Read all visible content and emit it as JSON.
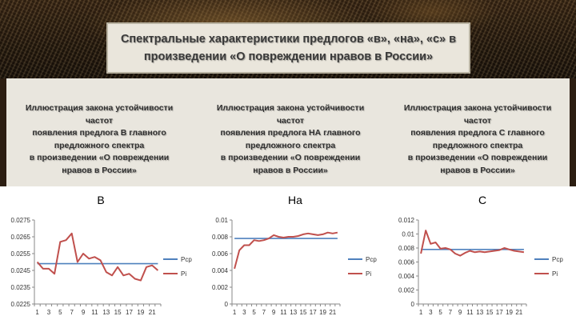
{
  "title": "Спектральные характеристики предлогов «в», «на», «с» в произведении «О повреждении нравов в России»",
  "captions": [
    {
      "lines": [
        "Иллюстрация закона устойчивости частот",
        "появления предлога В главного",
        "предложного спектра",
        "в произведении «О повреждении",
        "нравов в России»"
      ]
    },
    {
      "lines": [
        "Иллюстрация закона устойчивости частот",
        "появления предлога НА главного",
        "предложного спектра",
        "в произведении «О повреждении",
        "нравов в России»"
      ]
    },
    {
      "lines": [
        "Иллюстрация закона устойчивости частот",
        "появления предлога С главного",
        "предложного спектра",
        "в произведении «О повреждении",
        "нравов в России»"
      ]
    }
  ],
  "colors": {
    "pcp": "#4f81bd",
    "pi": "#c0504d"
  },
  "chart_data": [
    {
      "type": "line",
      "title": "В",
      "x": [
        1,
        2,
        3,
        4,
        5,
        6,
        7,
        8,
        9,
        10,
        11,
        12,
        13,
        14,
        15,
        16,
        17,
        18,
        19,
        20,
        21,
        22
      ],
      "x_ticks": [
        "1",
        "3",
        "5",
        "7",
        "9",
        "11",
        "13",
        "15",
        "17",
        "19",
        "21"
      ],
      "ylim": [
        0.0225,
        0.0275
      ],
      "y_ticks": [
        "0.0225",
        "0.0235",
        "0.0245",
        "0.0255",
        "0.0265",
        "0.0275"
      ],
      "legend_position": "right",
      "series": [
        {
          "name": "Pcp",
          "values": [
            0.0249,
            0.0249,
            0.0249,
            0.0249,
            0.0249,
            0.0249,
            0.0249,
            0.0249,
            0.0249,
            0.0249,
            0.0249,
            0.0249,
            0.0249,
            0.0249,
            0.0249,
            0.0249,
            0.0249,
            0.0249,
            0.0249,
            0.0249,
            0.0249,
            0.0249
          ]
        },
        {
          "name": "Pi",
          "values": [
            0.025,
            0.0246,
            0.0246,
            0.0243,
            0.0262,
            0.0263,
            0.0267,
            0.025,
            0.0255,
            0.0252,
            0.0253,
            0.0251,
            0.0244,
            0.0242,
            0.0247,
            0.0242,
            0.0243,
            0.024,
            0.0239,
            0.0247,
            0.0248,
            0.0245
          ]
        }
      ]
    },
    {
      "type": "line",
      "title": "На",
      "x": [
        1,
        2,
        3,
        4,
        5,
        6,
        7,
        8,
        9,
        10,
        11,
        12,
        13,
        14,
        15,
        16,
        17,
        18,
        19,
        20,
        21,
        22
      ],
      "x_ticks": [
        "1",
        "3",
        "5",
        "7",
        "9",
        "11",
        "13",
        "15",
        "17",
        "19",
        "21"
      ],
      "ylim": [
        0,
        0.01
      ],
      "y_ticks": [
        "0",
        "0.002",
        "0.004",
        "0.006",
        "0.008",
        "0.01"
      ],
      "legend_position": "right",
      "series": [
        {
          "name": "Pcp",
          "values": [
            0.0078,
            0.0078,
            0.0078,
            0.0078,
            0.0078,
            0.0078,
            0.0078,
            0.0078,
            0.0078,
            0.0078,
            0.0078,
            0.0078,
            0.0078,
            0.0078,
            0.0078,
            0.0078,
            0.0078,
            0.0078,
            0.0078,
            0.0078,
            0.0078,
            0.0078
          ]
        },
        {
          "name": "Pi",
          "values": [
            0.0042,
            0.0064,
            0.007,
            0.007,
            0.0076,
            0.0075,
            0.0076,
            0.0078,
            0.0082,
            0.008,
            0.0079,
            0.008,
            0.008,
            0.0081,
            0.0083,
            0.0084,
            0.0083,
            0.0082,
            0.0083,
            0.0085,
            0.0084,
            0.0085
          ]
        }
      ]
    },
    {
      "type": "line",
      "title": "С",
      "x": [
        1,
        2,
        3,
        4,
        5,
        6,
        7,
        8,
        9,
        10,
        11,
        12,
        13,
        14,
        15,
        16,
        17,
        18,
        19,
        20,
        21,
        22
      ],
      "x_ticks": [
        "1",
        "3",
        "5",
        "7",
        "9",
        "11",
        "13",
        "15",
        "17",
        "19",
        "21"
      ],
      "ylim": [
        0,
        0.012
      ],
      "y_ticks": [
        "0",
        "0.002",
        "0.004",
        "0.006",
        "0.008",
        "0.01",
        "0.012"
      ],
      "legend_position": "right",
      "series": [
        {
          "name": "Pcp",
          "values": [
            0.0078,
            0.0078,
            0.0078,
            0.0078,
            0.0078,
            0.0078,
            0.0078,
            0.0078,
            0.0078,
            0.0078,
            0.0078,
            0.0078,
            0.0078,
            0.0078,
            0.0078,
            0.0078,
            0.0078,
            0.0078,
            0.0078,
            0.0078,
            0.0078,
            0.0078
          ]
        },
        {
          "name": "Pi",
          "values": [
            0.0072,
            0.0105,
            0.0086,
            0.0088,
            0.0079,
            0.008,
            0.0078,
            0.0072,
            0.0069,
            0.0073,
            0.0076,
            0.0074,
            0.0075,
            0.0074,
            0.0075,
            0.0076,
            0.0077,
            0.008,
            0.0078,
            0.0076,
            0.0075,
            0.0074
          ]
        }
      ]
    }
  ]
}
